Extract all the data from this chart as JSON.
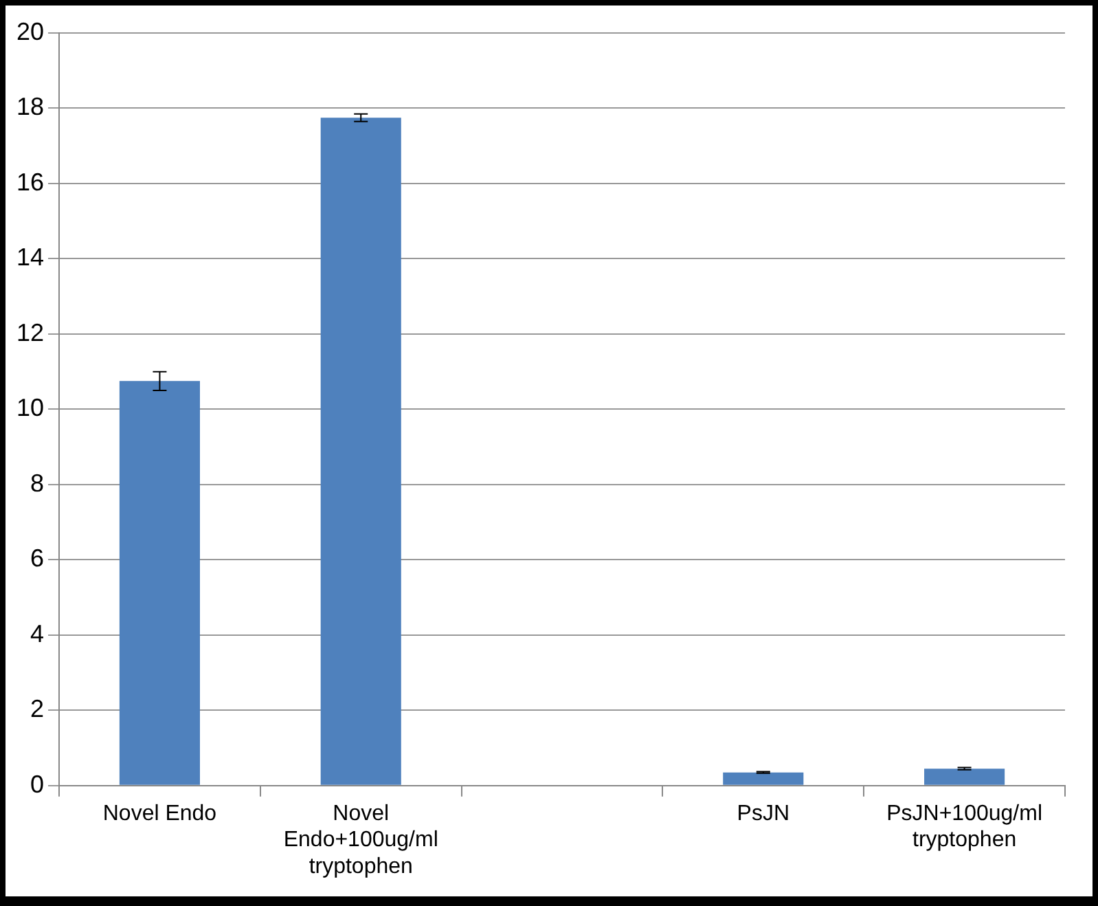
{
  "chart_data": {
    "type": "bar",
    "categories": [
      "Novel Endo",
      "Novel Endo+100ug/ml tryptophen",
      null,
      "PsJN",
      "PsJN+100ug/ml tryptophen"
    ],
    "values": [
      10.75,
      17.75,
      null,
      0.35,
      0.45
    ],
    "errors": [
      0.25,
      0.1,
      null,
      0.02,
      0.03
    ],
    "color": "#4f81bd",
    "ylim": [
      0,
      20
    ],
    "yticks": [
      0,
      2,
      4,
      6,
      8,
      10,
      12,
      14,
      16,
      18,
      20
    ],
    "grid": "y",
    "legend": false
  }
}
